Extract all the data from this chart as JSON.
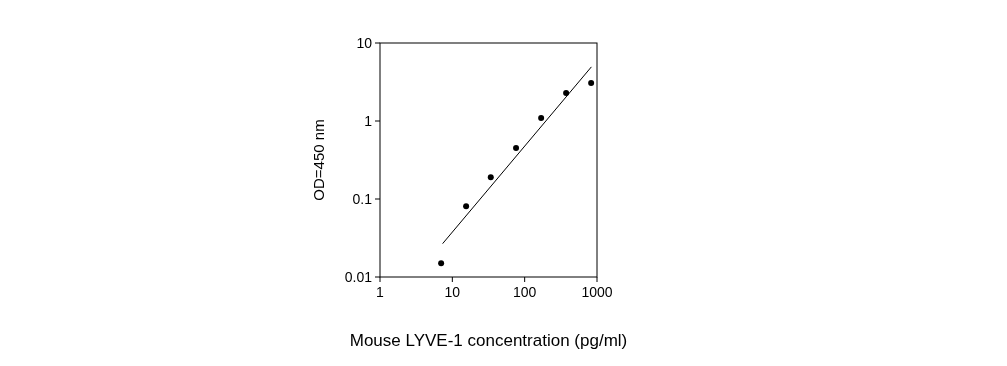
{
  "chart_data": {
    "type": "scatter",
    "xlabel": "Mouse LYVE-1 concentration (pg/ml)",
    "ylabel": "OD=450 nm",
    "log": "xy",
    "grid": false,
    "marker": "circle",
    "xlim": [
      1,
      1000
    ],
    "ylim": [
      0.01,
      10
    ],
    "xticks": [
      1,
      10,
      100,
      1000
    ],
    "yticks": [
      0.01,
      0.1,
      1,
      10
    ],
    "series": [
      {
        "color": "#000000",
        "x": [
          7,
          15.5,
          34,
          76,
          169,
          374,
          830
        ],
        "values": [
          0.015,
          0.081,
          0.19,
          0.45,
          1.09,
          2.29,
          3.08
        ]
      },
      {
        "type": "line",
        "color": "#000000",
        "marker": "none",
        "x": [
          7.4,
          830
        ],
        "values": [
          0.027,
          4.9
        ]
      }
    ]
  }
}
